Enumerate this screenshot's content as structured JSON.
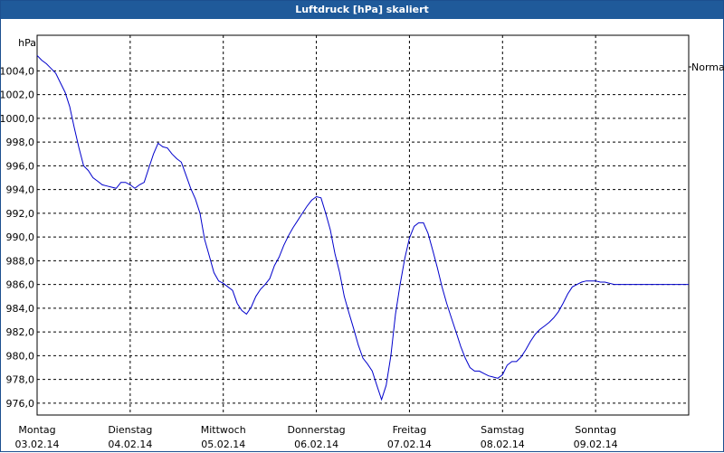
{
  "window": {
    "title": "Luftdruck [hPa] skaliert"
  },
  "chart_data": {
    "type": "line",
    "title": "Luftdruck [hPa] skaliert",
    "ylabel": "hPa",
    "xlabel": "",
    "ylim": [
      975,
      1007
    ],
    "y_ticks": [
      "1004,0",
      "1002,0",
      "1000,0",
      "998,0",
      "996,0",
      "994,0",
      "992,0",
      "990,0",
      "988,0",
      "986,0",
      "984,0",
      "982,0",
      "980,0",
      "978,0",
      "976,0"
    ],
    "y_tick_values": [
      1004,
      1002,
      1000,
      998,
      996,
      994,
      992,
      990,
      988,
      986,
      984,
      982,
      980,
      978,
      976
    ],
    "x_range": [
      0,
      7
    ],
    "x_ticks": [
      {
        "x": 0,
        "day": "Montag",
        "date": "03.02.14"
      },
      {
        "x": 1,
        "day": "Dienstag",
        "date": "04.02.14"
      },
      {
        "x": 2,
        "day": "Mittwoch",
        "date": "05.02.14"
      },
      {
        "x": 3,
        "day": "Donnerstag",
        "date": "06.02.14"
      },
      {
        "x": 4,
        "day": "Freitag",
        "date": "07.02.14"
      },
      {
        "x": 5,
        "day": "Samstag",
        "date": "08.02.14"
      },
      {
        "x": 6,
        "day": "Sonntag",
        "date": "09.02.14"
      }
    ],
    "grid": true,
    "legend": {
      "position": "right",
      "entries": [
        "Normal"
      ]
    },
    "series": [
      {
        "name": "Normal",
        "color": "#0000cc",
        "x": [
          0.0,
          0.05,
          0.1,
          0.15,
          0.2,
          0.25,
          0.3,
          0.35,
          0.4,
          0.45,
          0.5,
          0.55,
          0.6,
          0.65,
          0.7,
          0.75,
          0.8,
          0.85,
          0.9,
          0.95,
          1.0,
          1.05,
          1.1,
          1.15,
          1.2,
          1.25,
          1.3,
          1.35,
          1.4,
          1.45,
          1.5,
          1.55,
          1.6,
          1.65,
          1.7,
          1.75,
          1.8,
          1.85,
          1.9,
          1.95,
          2.0,
          2.05,
          2.1,
          2.15,
          2.2,
          2.25,
          2.3,
          2.35,
          2.4,
          2.45,
          2.5,
          2.55,
          2.6,
          2.65,
          2.7,
          2.75,
          2.8,
          2.85,
          2.9,
          2.95,
          3.0,
          3.05,
          3.1,
          3.15,
          3.2,
          3.25,
          3.3,
          3.35,
          3.4,
          3.45,
          3.5,
          3.55,
          3.6,
          3.65,
          3.7,
          3.75,
          3.8,
          3.85,
          3.9,
          3.95,
          4.0,
          4.05,
          4.1,
          4.15,
          4.2,
          4.25,
          4.3,
          4.35,
          4.4,
          4.45,
          4.5,
          4.55,
          4.6,
          4.65,
          4.7,
          4.75,
          4.8,
          4.85,
          4.9,
          4.95,
          5.0,
          5.05,
          5.1,
          5.15,
          5.2,
          5.25,
          5.3,
          5.35,
          5.4,
          5.45,
          5.5,
          5.55,
          5.6,
          5.65,
          5.7,
          5.75,
          5.8,
          5.85,
          5.9,
          5.95,
          6.0,
          6.05,
          6.1,
          6.15,
          6.2,
          6.25,
          6.3,
          6.35,
          6.4,
          6.45,
          6.5,
          6.55,
          6.6,
          6.65,
          6.7,
          6.75,
          6.8,
          6.85,
          6.9,
          6.95,
          7.0
        ],
        "values": [
          1005.3,
          1004.9,
          1004.6,
          1004.2,
          1003.8,
          1003.0,
          1002.2,
          1001.0,
          999.2,
          997.5,
          996.0,
          995.6,
          995.0,
          994.7,
          994.4,
          994.3,
          994.2,
          994.1,
          994.6,
          994.6,
          994.4,
          994.1,
          994.4,
          994.6,
          995.8,
          997.0,
          997.9,
          997.6,
          997.5,
          997.0,
          996.6,
          996.3,
          995.2,
          994.1,
          993.2,
          992.0,
          989.8,
          988.4,
          987.0,
          986.3,
          986.1,
          985.8,
          985.5,
          984.4,
          983.8,
          983.5,
          984.1,
          985.0,
          985.6,
          986.0,
          986.5,
          987.6,
          988.3,
          989.3,
          990.1,
          990.8,
          991.4,
          992.0,
          992.6,
          993.1,
          993.4,
          993.3,
          992.0,
          990.6,
          988.6,
          987.0,
          985.0,
          983.6,
          982.3,
          980.9,
          979.8,
          979.3,
          978.7,
          977.5,
          976.3,
          977.5,
          980.0,
          983.5,
          986.0,
          988.2,
          989.9,
          990.9,
          991.2,
          991.2,
          990.3,
          988.9,
          987.4,
          985.8,
          984.4,
          983.2,
          982.0,
          980.8,
          979.8,
          979.0,
          978.7,
          978.7,
          978.5,
          978.3,
          978.2,
          978.1,
          978.4,
          979.2,
          979.5,
          979.5,
          979.9,
          980.5,
          981.2,
          981.8,
          982.2,
          982.5,
          982.8,
          983.2,
          983.7,
          984.4,
          985.2,
          985.8,
          986.0,
          986.2,
          986.3,
          986.3,
          986.3,
          986.2,
          986.2,
          986.1,
          986.0,
          986.0,
          986.0,
          986.0,
          986.0,
          986.0,
          986.0,
          986.0,
          986.0,
          986.0,
          986.0,
          986.0,
          986.0,
          986.0,
          986.0,
          986.0,
          986.0
        ]
      }
    ]
  }
}
